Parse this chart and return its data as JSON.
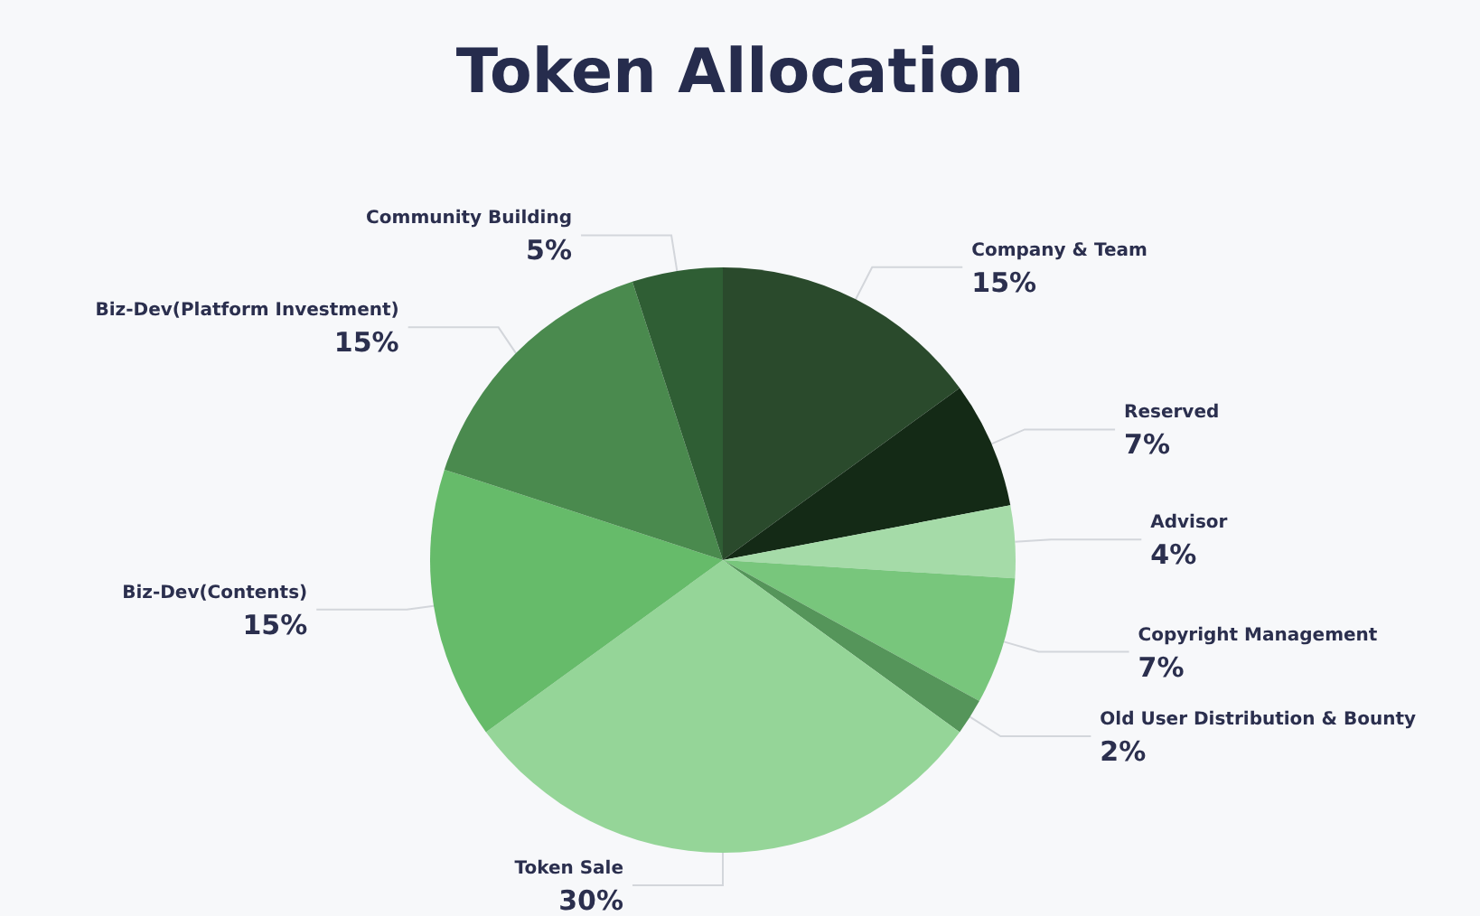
{
  "chart_data": {
    "type": "pie",
    "title": "Token Allocation",
    "categories": [
      "Company & Team",
      "Reserved",
      "Advisor",
      "Copyright Management",
      "Old User Distribution & Bounty",
      "Token Sale",
      "Biz-Dev(Contents)",
      "Biz-Dev(Platform Investment)",
      "Community Building"
    ],
    "values": [
      15,
      7,
      4,
      7,
      2,
      30,
      15,
      15,
      5
    ],
    "value_labels": [
      "15%",
      "7%",
      "4%",
      "7%",
      "2%",
      "30%",
      "15%",
      "15%",
      "5%"
    ],
    "colors": [
      "#2a4a2c",
      "#142a16",
      "#a5dba8",
      "#78c67c",
      "#55955a",
      "#95d598",
      "#66bb6a",
      "#4a8a4e",
      "#2f5e34"
    ],
    "legend": false
  }
}
